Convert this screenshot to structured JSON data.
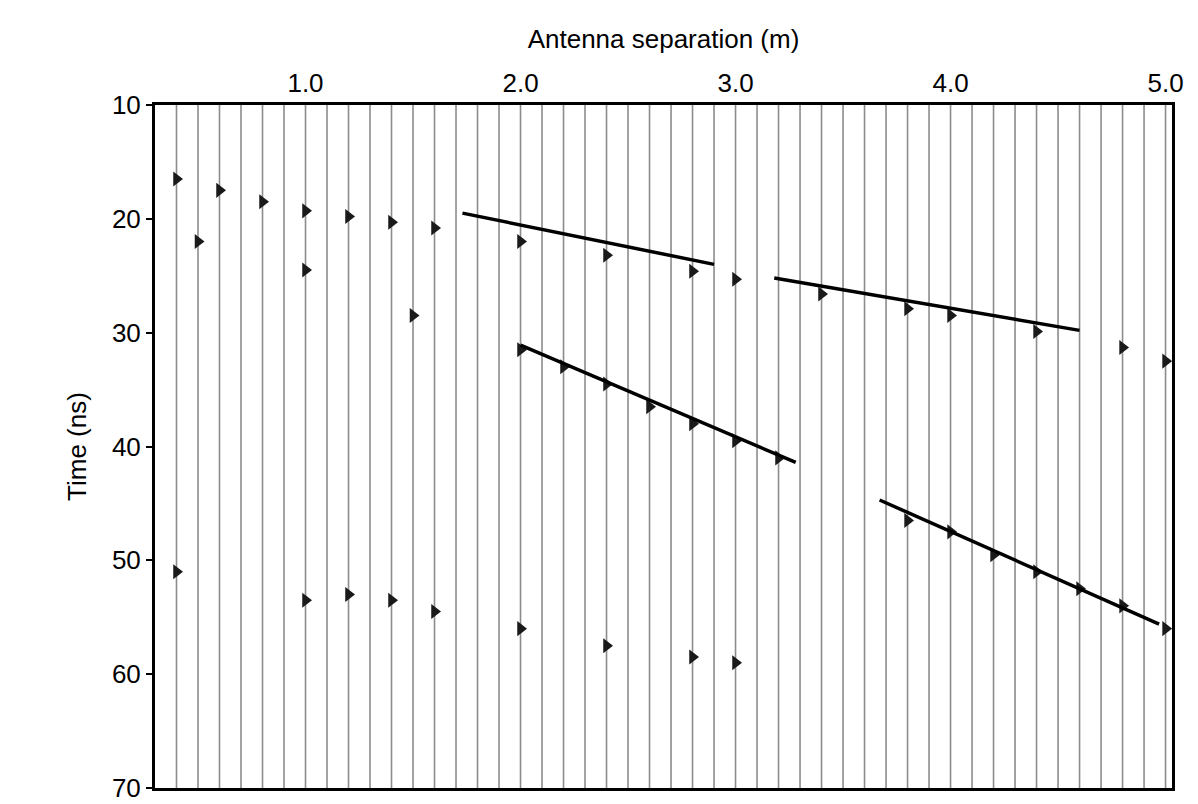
{
  "chart_data": {
    "type": "scatter",
    "x_label": "Antenna separation (m)",
    "y_label": "Time (ns)",
    "xlim": [
      0.3,
      5.03
    ],
    "xticks": [
      {
        "value": 1,
        "label": "1.0"
      },
      {
        "value": 2,
        "label": "2.0"
      },
      {
        "value": 3,
        "label": "3.0"
      },
      {
        "value": 4,
        "label": "4.0"
      },
      {
        "value": 5,
        "label": "5.0"
      }
    ],
    "ylim": [
      70,
      10
    ],
    "yticks": [
      10,
      20,
      30,
      40,
      50,
      60,
      70
    ],
    "grid": false,
    "traces": [
      0.4,
      0.5,
      0.6,
      0.7,
      0.8,
      0.9,
      1.0,
      1.1,
      1.2,
      1.3,
      1.4,
      1.5,
      1.6,
      1.7,
      1.8,
      1.9,
      2.0,
      2.1,
      2.2,
      2.3,
      2.4,
      2.5,
      2.6,
      2.7,
      2.8,
      2.9,
      3.0,
      3.1,
      3.2,
      3.3,
      3.4,
      3.5,
      3.6,
      3.7,
      3.8,
      3.9,
      4.0,
      4.1,
      4.2,
      4.3,
      4.4,
      4.5,
      4.6,
      4.7,
      4.8,
      4.9,
      5.0
    ],
    "series": [
      {
        "type": "scatter",
        "color": "#1a1a1a",
        "marker": "triangle-right",
        "x": [
          0.4,
          0.6,
          0.8,
          1.0,
          1.2,
          1.4,
          1.6,
          2.0,
          2.4,
          2.8,
          3.0,
          3.4,
          3.8,
          4.0,
          4.4,
          4.8,
          5.0
        ],
        "values": [
          16.5,
          17.5,
          18.5,
          19.3,
          19.8,
          20.3,
          20.8,
          22.0,
          23.2,
          24.6,
          25.3,
          26.6,
          27.9,
          28.5,
          29.9,
          31.3,
          32.5
        ]
      },
      {
        "type": "scatter",
        "color": "#1a1a1a",
        "marker": "triangle-right",
        "x": [
          0.5,
          1.0,
          1.5,
          2.0,
          2.2,
          2.4,
          2.6,
          2.8,
          3.0,
          3.2,
          3.8,
          4.0,
          4.2,
          4.4,
          4.6,
          4.8,
          5.0
        ],
        "values": [
          22.0,
          24.5,
          28.5,
          31.5,
          33.0,
          34.5,
          36.5,
          38.0,
          39.5,
          41.0,
          46.5,
          47.5,
          49.5,
          51.0,
          52.5,
          54.0,
          56.0
        ]
      },
      {
        "type": "scatter",
        "color": "#1a1a1a",
        "marker": "triangle-right",
        "x": [
          0.4,
          1.0,
          1.2,
          1.4,
          1.6,
          2.0,
          2.4,
          2.8,
          3.0
        ],
        "values": [
          51.0,
          53.5,
          53.0,
          53.5,
          54.5,
          56.0,
          57.5,
          58.5,
          59.0
        ]
      },
      {
        "type": "line",
        "color": "#000000",
        "line_style": "solid",
        "x": [
          1.73,
          2.9,
          null,
          3.18,
          4.6,
          null,
          2.0,
          3.28,
          null,
          3.67,
          4.97
        ],
        "values": [
          19.5,
          24.0,
          null,
          25.2,
          29.8,
          null,
          31.1,
          41.4,
          null,
          44.7,
          55.6
        ]
      }
    ]
  }
}
